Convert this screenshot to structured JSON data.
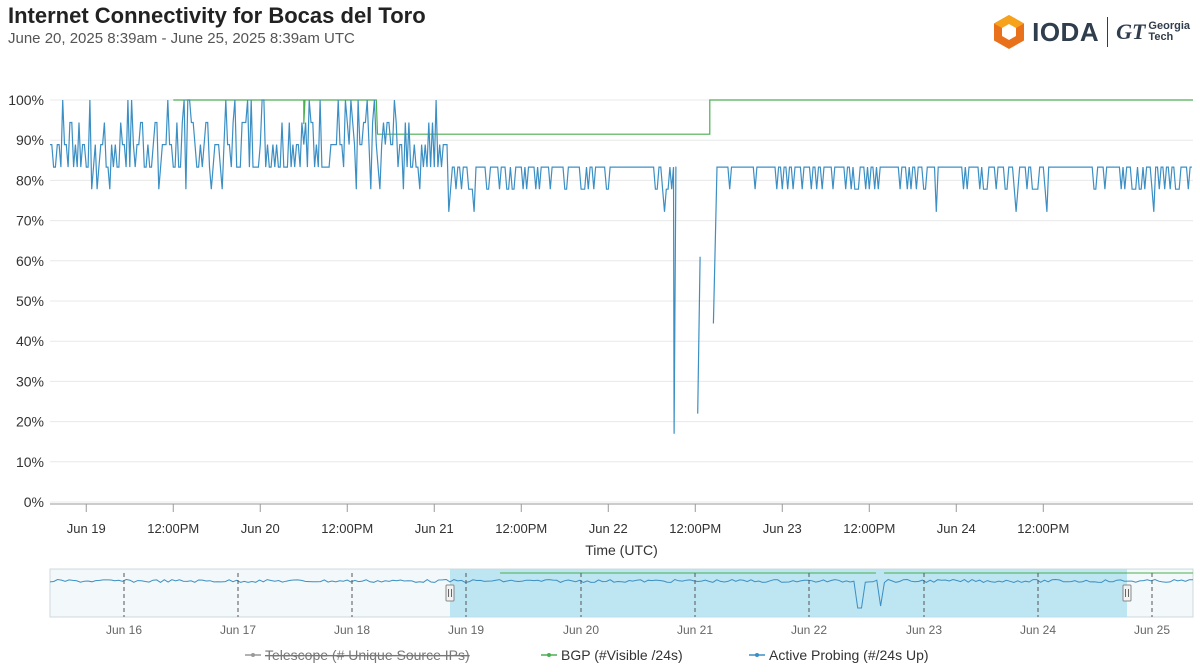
{
  "header": {
    "title": "Internet Connectivity for Bocas del Toro",
    "subtitle": "June 20, 2025 8:39am - June 25, 2025 8:39am UTC"
  },
  "brand": {
    "ioda_label": "IODA",
    "gt_mark": "GT",
    "gt_line1": "Georgia",
    "gt_line2": "Tech",
    "logo_colors": [
      "#f7a21b",
      "#e9711c",
      "#c55318"
    ]
  },
  "colors": {
    "bgp": "#4caf50",
    "active_probing": "#3b8fc4",
    "telescope": "#666666",
    "navigator_band": "#b3e2f0",
    "grid": "#e8e8e8"
  },
  "chart_data": {
    "type": "line",
    "xlabel": "Time (UTC)",
    "ylabel": "",
    "ylim": [
      0,
      100
    ],
    "y_unit": "%",
    "y_ticks": [
      "0%",
      "10%",
      "20%",
      "30%",
      "40%",
      "50%",
      "60%",
      "70%",
      "80%",
      "90%",
      "100%"
    ],
    "x_range": [
      "2025-06-18 19:00",
      "2025-06-25 08:39"
    ],
    "x_ticks": [
      {
        "t": "2025-06-19 00:00",
        "label": "Jun 19"
      },
      {
        "t": "2025-06-19 12:00",
        "label": "12:00PM"
      },
      {
        "t": "2025-06-20 00:00",
        "label": "Jun 20"
      },
      {
        "t": "2025-06-20 12:00",
        "label": "12:00PM"
      },
      {
        "t": "2025-06-21 00:00",
        "label": "Jun 21"
      },
      {
        "t": "2025-06-21 12:00",
        "label": "12:00PM"
      },
      {
        "t": "2025-06-22 00:00",
        "label": "Jun 22"
      },
      {
        "t": "2025-06-22 12:00",
        "label": "12:00PM"
      },
      {
        "t": "2025-06-23 00:00",
        "label": "Jun 23"
      },
      {
        "t": "2025-06-23 12:00",
        "label": "12:00PM"
      },
      {
        "t": "2025-06-24 00:00",
        "label": "Jun 24"
      },
      {
        "t": "2025-06-24 12:00",
        "label": "12:00PM"
      }
    ],
    "series": [
      {
        "name": "BGP (#Visible /24s)",
        "color": "#4caf50",
        "points": [
          [
            "2025-06-19 12:00",
            100
          ],
          [
            "2025-06-20 06:00",
            100
          ],
          [
            "2025-06-20 06:00",
            94
          ],
          [
            "2025-06-20 06:10",
            100
          ],
          [
            "2025-06-20 16:00",
            100
          ],
          [
            "2025-06-20 16:10",
            91.5
          ],
          [
            "2025-06-22 10:00",
            91.5
          ],
          [
            "2025-06-22 12:30",
            91.5
          ],
          [
            "2025-06-22 12:30",
            91.5
          ],
          [
            "2025-06-22 14:00",
            91.5
          ],
          [
            "2025-06-22 14:00",
            100
          ],
          [
            "2025-06-25 08:39",
            100
          ]
        ]
      },
      {
        "name": "Active Probing (#/24s Up)",
        "color": "#3b8fc4",
        "segments": [
          {
            "start": "2025-06-18 19:00",
            "end": "2025-06-21 00:30",
            "levels": [
              83.3,
              88.9,
              94.4,
              100,
              77.8
            ],
            "pattern": "high-noise"
          },
          {
            "start": "2025-06-21 00:30",
            "end": "2025-06-21 02:00",
            "levels": [
              88.9,
              83.3
            ],
            "pattern": "dip"
          },
          {
            "start": "2025-06-21 02:00",
            "end": "2025-06-21 06:00",
            "levels": [
              83.3,
              77.8,
              72.2,
              66.7
            ],
            "pattern": "low-noise"
          },
          {
            "start": "2025-06-21 06:00",
            "end": "2025-06-22 09:00",
            "levels": [
              83.3,
              77.8
            ],
            "pattern": "steady"
          },
          {
            "start": "2025-06-22 09:00",
            "end": "2025-06-22 09:20",
            "levels": [
              17
            ],
            "pattern": "outage"
          },
          {
            "start": "2025-06-22 09:20",
            "end": "2025-06-22 12:20",
            "levels": [
              83.3
            ],
            "pattern": "gap"
          },
          {
            "start": "2025-06-22 12:20",
            "end": "2025-06-22 12:40",
            "levels": [
              22,
              61
            ],
            "pattern": "spike"
          },
          {
            "start": "2025-06-22 14:30",
            "end": "2025-06-22 15:00",
            "levels": [
              44.4,
              83.3
            ],
            "pattern": "recovery"
          },
          {
            "start": "2025-06-22 15:00",
            "end": "2025-06-25 08:39",
            "levels": [
              83.3,
              77.8,
              72.2
            ],
            "pattern": "steady"
          }
        ]
      }
    ],
    "legend": [
      {
        "label": "Telescope (# Unique Source IPs)",
        "color": "#666666",
        "disabled": true
      },
      {
        "label": "BGP (#Visible /24s)",
        "color": "#4caf50",
        "disabled": false
      },
      {
        "label": "Active Probing (#/24s Up)",
        "color": "#3b8fc4",
        "disabled": false
      }
    ],
    "legend_position": "bottom-center",
    "navigator": {
      "x_ticks": [
        "Jun 16",
        "Jun 17",
        "Jun 18",
        "Jun 19",
        "Jun 20",
        "Jun 21",
        "Jun 22",
        "Jun 23",
        "Jun 24",
        "Jun 25"
      ],
      "selected_range": [
        "2025-06-18 19:00",
        "2025-06-25 08:39"
      ]
    }
  }
}
